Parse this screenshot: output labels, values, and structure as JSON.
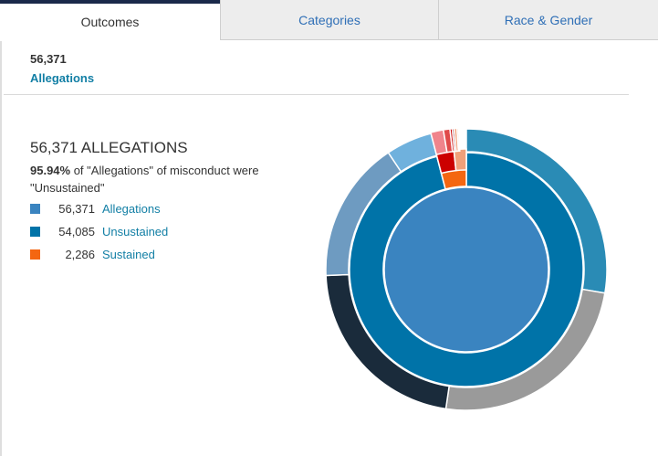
{
  "tabs": [
    {
      "label": "Outcomes",
      "active": true
    },
    {
      "label": "Categories",
      "active": false
    },
    {
      "label": "Race & Gender",
      "active": false
    }
  ],
  "summary": {
    "count": "56,371",
    "label": "Allegations"
  },
  "headline": "56,371 ALLEGATIONS",
  "description": {
    "percent": "95.94%",
    "text": " of \"Allegations\" of misconduct were \"Unsustained\""
  },
  "legend": [
    {
      "count": "56,371",
      "label": "Allegations",
      "color": "#3a84c0"
    },
    {
      "count": "54,085",
      "label": "Unsustained",
      "color": "#0073a8"
    },
    {
      "count": "2,286",
      "label": "Sustained",
      "color": "#f46611"
    }
  ],
  "chart_data": {
    "type": "sunburst",
    "total": 56371,
    "rings": [
      {
        "level": "all",
        "segments": [
          {
            "label": "Allegations",
            "value": 56371,
            "color": "#3a84c0"
          }
        ]
      },
      {
        "level": "outcome",
        "segments": [
          {
            "label": "Unsustained",
            "value": 54085,
            "color": "#0073a8"
          },
          {
            "label": "Sustained",
            "value": 2286,
            "color": "#f46611"
          }
        ]
      },
      {
        "level": "detail",
        "segments": [
          {
            "value": 15600,
            "color": "#2a8bb5",
            "parent": "Unsustained"
          },
          {
            "value": 13900,
            "color": "#9a9a9a",
            "parent": "Unsustained"
          },
          {
            "value": 12400,
            "color": "#1a2b3b",
            "parent": "Unsustained"
          },
          {
            "value": 9185,
            "color": "#6e9bc1",
            "parent": "Unsustained"
          },
          {
            "value": 3000,
            "color": "#6fb1dd",
            "parent": "Unsustained"
          },
          {
            "value": 1350,
            "color": "#cc0000",
            "parent": "Sustained"
          },
          {
            "value": 936,
            "color": "#f0a07a",
            "parent": "Sustained"
          }
        ]
      },
      {
        "level": "sub-detail",
        "segments": [
          {
            "value": 820,
            "color": "#f0848c"
          },
          {
            "value": 420,
            "color": "#e04a4a"
          },
          {
            "value": 150,
            "color": "#cc0000"
          },
          {
            "value": 120,
            "color": "#8e1a1a"
          },
          {
            "value": 180,
            "color": "#f4a582"
          },
          {
            "value": 100,
            "color": "#f4c7a2"
          }
        ]
      }
    ]
  }
}
